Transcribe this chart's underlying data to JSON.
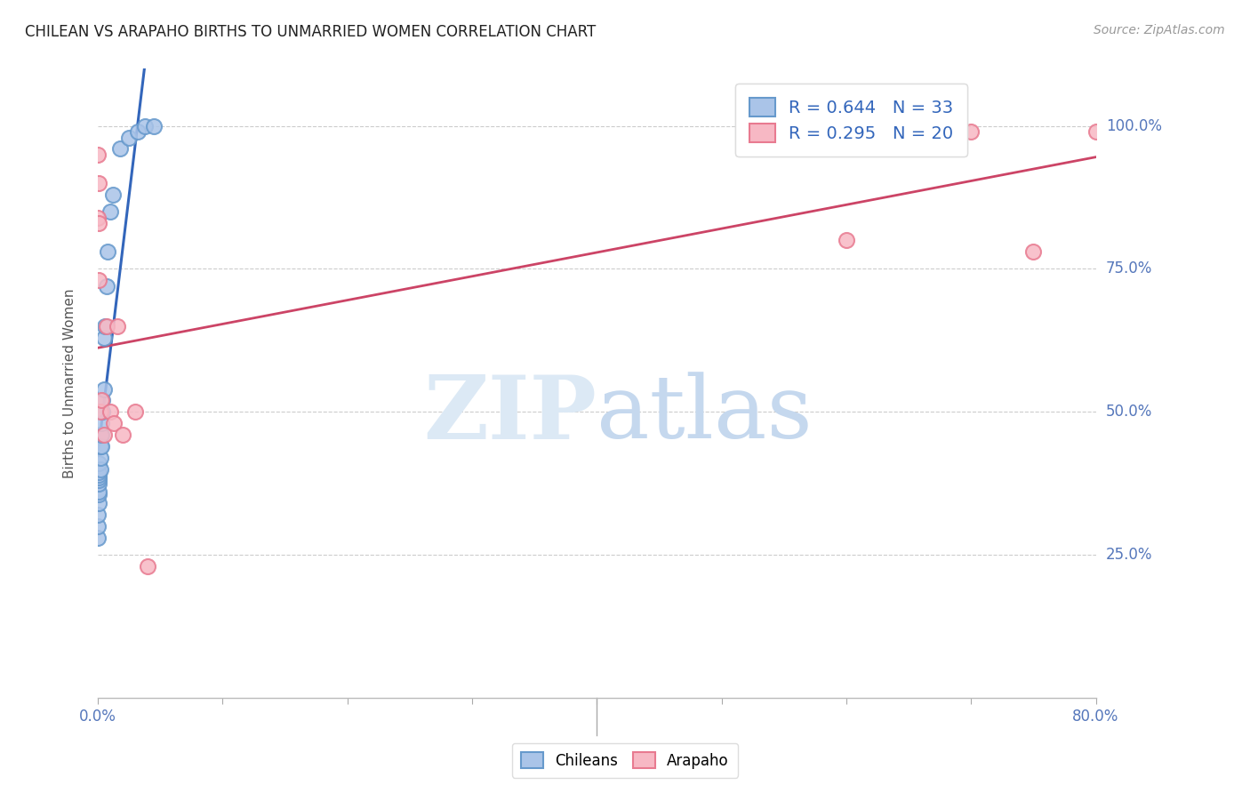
{
  "title": "CHILEAN VS ARAPAHO BIRTHS TO UNMARRIED WOMEN CORRELATION CHART",
  "source": "Source: ZipAtlas.com",
  "ylabel": "Births to Unmarried Women",
  "ytick_labels": [
    "100.0%",
    "75.0%",
    "50.0%",
    "25.0%"
  ],
  "ytick_values": [
    1.0,
    0.75,
    0.5,
    0.25
  ],
  "legend_blue": "R = 0.644   N = 33",
  "legend_pink": "R = 0.295   N = 20",
  "legend_label_blue": "Chileans",
  "legend_label_pink": "Arapaho",
  "blue_scatter_face": "#aac4e8",
  "blue_scatter_edge": "#6699cc",
  "pink_scatter_face": "#f7b8c4",
  "pink_scatter_edge": "#e87a90",
  "blue_line_color": "#3366bb",
  "pink_line_color": "#cc4466",
  "watermark_zip_color": "#dce9f5",
  "watermark_atlas_color": "#c5d8ee",
  "background_color": "#ffffff",
  "grid_color": "#cccccc",
  "title_color": "#222222",
  "axis_label_color": "#555555",
  "tick_label_color": "#5577bb",
  "xlim": [
    0.0,
    0.8
  ],
  "ylim": [
    0.0,
    1.1
  ],
  "chileans_x": [
    0.0,
    0.0,
    0.0,
    0.001,
    0.001,
    0.001,
    0.001,
    0.001,
    0.001,
    0.001,
    0.001,
    0.001,
    0.002,
    0.002,
    0.002,
    0.002,
    0.003,
    0.003,
    0.003,
    0.004,
    0.004,
    0.005,
    0.005,
    0.006,
    0.007,
    0.008,
    0.01,
    0.012,
    0.018,
    0.025,
    0.032,
    0.038,
    0.045
  ],
  "chileans_y": [
    0.28,
    0.3,
    0.32,
    0.34,
    0.355,
    0.36,
    0.375,
    0.38,
    0.385,
    0.39,
    0.395,
    0.41,
    0.4,
    0.42,
    0.44,
    0.46,
    0.44,
    0.46,
    0.48,
    0.5,
    0.52,
    0.54,
    0.63,
    0.65,
    0.72,
    0.78,
    0.85,
    0.88,
    0.96,
    0.98,
    0.99,
    1.0,
    1.0
  ],
  "arapaho_x": [
    0.0,
    0.0,
    0.001,
    0.001,
    0.001,
    0.002,
    0.003,
    0.005,
    0.007,
    0.01,
    0.013,
    0.016,
    0.02,
    0.03,
    0.04,
    0.6,
    0.65,
    0.7,
    0.75,
    0.8
  ],
  "arapaho_y": [
    0.84,
    0.95,
    0.73,
    0.83,
    0.9,
    0.5,
    0.52,
    0.46,
    0.65,
    0.5,
    0.48,
    0.65,
    0.46,
    0.5,
    0.23,
    0.8,
    1.0,
    0.99,
    0.78,
    0.99
  ]
}
